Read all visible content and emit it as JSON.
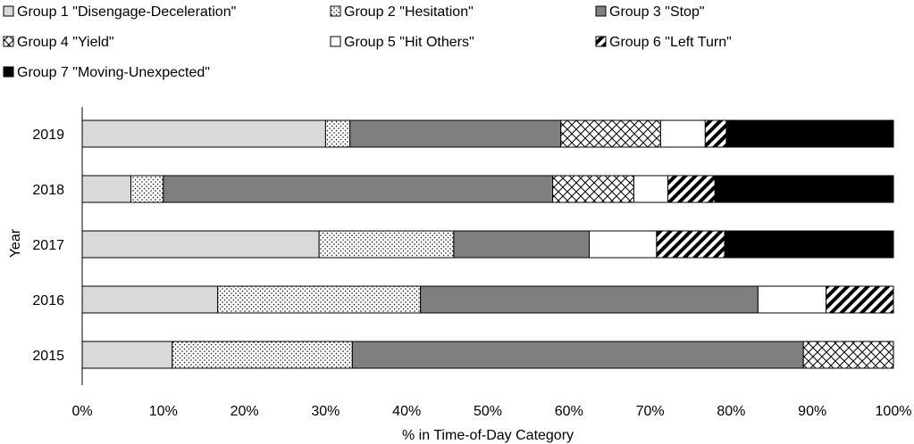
{
  "chart_data": {
    "type": "bar",
    "orientation": "horizontal",
    "stacked": true,
    "categories": [
      "2019",
      "2018",
      "2017",
      "2016",
      "2015"
    ],
    "xlabel": "% in Time-of-Day Category",
    "ylabel": "Year",
    "xlim": [
      0,
      100
    ],
    "xticks": [
      "0%",
      "10%",
      "20%",
      "30%",
      "40%",
      "50%",
      "60%",
      "70%",
      "80%",
      "90%",
      "100%"
    ],
    "grid": false,
    "legend_position": "top",
    "series": [
      {
        "name": "Group 1 \"Disengage-Deceleration\"",
        "pattern": "light-gray",
        "color": "#d9d9d9",
        "values": [
          30,
          6,
          29.2,
          16.7,
          11.1
        ]
      },
      {
        "name": "Group 2 \"Hesitation\"",
        "pattern": "dots",
        "color": "#ffffff",
        "values": [
          3,
          4,
          16.6,
          25,
          22.2
        ]
      },
      {
        "name": "Group 3 \"Stop\"",
        "pattern": "dark-gray",
        "color": "#7f7f7f",
        "values": [
          26,
          48,
          16.7,
          41.6,
          55.6
        ]
      },
      {
        "name": "Group 4 \"Yield\"",
        "pattern": "crosshatch",
        "color": "#ffffff",
        "values": [
          12.3,
          10,
          0,
          0,
          11.1
        ]
      },
      {
        "name": "Group 5 \"Hit Others\"",
        "pattern": "white",
        "color": "#ffffff",
        "values": [
          5.5,
          4.2,
          8.3,
          8.4,
          0
        ]
      },
      {
        "name": "Group 6 \"Left Turn\"",
        "pattern": "diagonal",
        "color": "#ffffff",
        "values": [
          2.6,
          5.8,
          8.4,
          8.3,
          0
        ]
      },
      {
        "name": "Group 7 \"Moving-Unexpected\"",
        "pattern": "black",
        "color": "#000000",
        "values": [
          20.6,
          22,
          20.8,
          0,
          0
        ]
      }
    ]
  }
}
